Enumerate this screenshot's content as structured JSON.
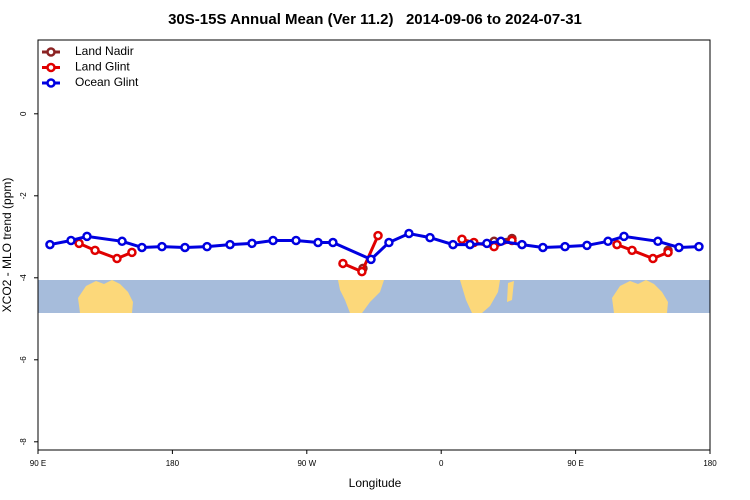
{
  "chart_data": {
    "type": "line",
    "title": "30S-15S Annual Mean (Ver 11.2)   2014-09-06 to 2024-07-31",
    "x_label": "Longitude",
    "y_label": "XCO2 - MLO trend (ppm)",
    "xlim": [
      90,
      540
    ],
    "ylim": [
      -8.2,
      1.8
    ],
    "xticks": [
      {
        "value": 90,
        "label": "90 E"
      },
      180,
      {
        "value": 270,
        "label": "90 W"
      },
      {
        "value": 360,
        "label": "0"
      },
      {
        "value": 450,
        "label": "90 E"
      },
      {
        "value": 540,
        "label": "180"
      }
    ],
    "yticks": [
      0,
      -2,
      -4,
      -6,
      -8
    ],
    "legend": "top-left",
    "series": [
      {
        "name": "Land Nadir",
        "color": "#8b2323",
        "x": [
          307.6,
          null,
          395.4,
          407.4,
          null,
          511.9
        ],
        "values": [
          -3.77,
          null,
          -3.11,
          -3.04,
          null,
          -3.33
        ]
      },
      {
        "name": "Land Glint",
        "color": "#e00000",
        "x": [
          117.5,
          128.2,
          142.9,
          152.9,
          null,
          294.2,
          306.9,
          317.7,
          null,
          373.9,
          381.9,
          395.4,
          407.4,
          null,
          477.7,
          487.8,
          501.8,
          511.9
        ],
        "values": [
          -3.16,
          -3.33,
          -3.53,
          -3.38,
          null,
          -3.65,
          -3.85,
          -2.97,
          null,
          -3.06,
          -3.14,
          -3.24,
          -3.09,
          null,
          -3.19,
          -3.33,
          -3.53,
          -3.38
        ]
      },
      {
        "name": "Ocean Glint",
        "color": "#0000e0",
        "x": [
          98.0,
          112.1,
          122.8,
          146.3,
          159.6,
          173.0,
          188.4,
          203.2,
          218.6,
          233.3,
          247.4,
          262.8,
          277.5,
          287.5,
          313.0,
          325.0,
          338.4,
          352.5,
          367.9,
          379.3,
          390.6,
          400.0,
          414.1,
          428.1,
          442.9,
          457.6,
          471.7,
          482.4,
          505.1,
          519.2,
          532.6
        ],
        "values": [
          -3.19,
          -3.09,
          -2.99,
          -3.11,
          -3.26,
          -3.24,
          -3.26,
          -3.24,
          -3.19,
          -3.16,
          -3.09,
          -3.09,
          -3.14,
          -3.14,
          -3.55,
          -3.14,
          -2.92,
          -3.02,
          -3.19,
          -3.19,
          -3.16,
          -3.11,
          -3.19,
          -3.26,
          -3.24,
          -3.21,
          -3.11,
          -2.99,
          -3.11,
          -3.26,
          -3.24
        ]
      }
    ]
  }
}
